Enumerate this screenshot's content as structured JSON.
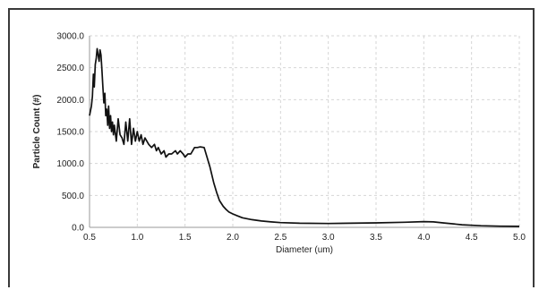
{
  "chart_data": {
    "type": "line",
    "title": "",
    "xlabel": "Diameter (um)",
    "ylabel": "Particle Count (#)",
    "xlim": [
      0.5,
      5.0
    ],
    "ylim": [
      0,
      3000
    ],
    "xticks": [
      "0.5",
      "1.0",
      "1.5",
      "2.0",
      "2.5",
      "3.0",
      "3.5",
      "4.0",
      "4.5",
      "5.0"
    ],
    "yticks": [
      "0.0",
      "500.0",
      "1000.0",
      "1500.0",
      "2000.0",
      "2500.0",
      "3000.0"
    ],
    "grid": true,
    "legend": "none",
    "series_color": "#111111",
    "series": [
      {
        "x": [
          0.5,
          0.52,
          0.53,
          0.54,
          0.55,
          0.56,
          0.57,
          0.58,
          0.59,
          0.6,
          0.61,
          0.62,
          0.63,
          0.64,
          0.65,
          0.66,
          0.67,
          0.68,
          0.69,
          0.7,
          0.71,
          0.72,
          0.73,
          0.74,
          0.75,
          0.76,
          0.78,
          0.8,
          0.82,
          0.84,
          0.86,
          0.88,
          0.9,
          0.92,
          0.94,
          0.96,
          0.98,
          1.0,
          1.02,
          1.04,
          1.06,
          1.08,
          1.1,
          1.12,
          1.15,
          1.18,
          1.2,
          1.22,
          1.25,
          1.28,
          1.3,
          1.33,
          1.36,
          1.4,
          1.42,
          1.45,
          1.48,
          1.5,
          1.53,
          1.56,
          1.6,
          1.63,
          1.66,
          1.7,
          1.73,
          1.76,
          1.8,
          1.83,
          1.86,
          1.9,
          1.93,
          1.96,
          2.0,
          2.05,
          2.1,
          2.2,
          2.3,
          2.4,
          2.5,
          2.7,
          3.0,
          3.5,
          3.8,
          4.0,
          4.1,
          4.2,
          4.4,
          4.6,
          4.8,
          5.0
        ],
        "y": [
          1750,
          1900,
          2050,
          2400,
          2200,
          2550,
          2650,
          2800,
          2700,
          2600,
          2780,
          2700,
          2450,
          2200,
          1950,
          2100,
          1750,
          1850,
          1600,
          1900,
          1550,
          1750,
          1500,
          1650,
          1450,
          1600,
          1350,
          1700,
          1450,
          1400,
          1300,
          1650,
          1350,
          1700,
          1300,
          1550,
          1350,
          1500,
          1350,
          1450,
          1300,
          1400,
          1350,
          1300,
          1250,
          1300,
          1200,
          1250,
          1150,
          1200,
          1100,
          1150,
          1150,
          1200,
          1150,
          1200,
          1150,
          1100,
          1150,
          1150,
          1250,
          1250,
          1260,
          1250,
          1100,
          950,
          700,
          550,
          420,
          330,
          280,
          240,
          210,
          180,
          150,
          120,
          100,
          85,
          75,
          65,
          60,
          70,
          80,
          90,
          85,
          70,
          40,
          25,
          18,
          15
        ]
      }
    ]
  }
}
